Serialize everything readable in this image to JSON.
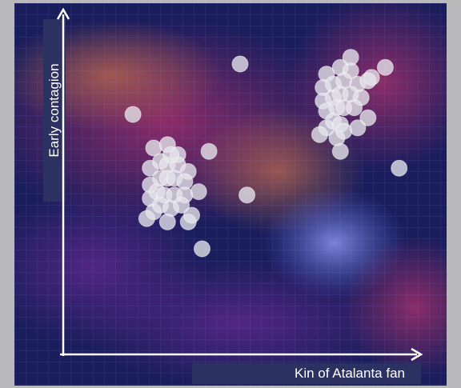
{
  "colors": {
    "page_background": "#b9b9bb",
    "axis": "#ffffff",
    "label_box": "#2b3160",
    "point_fill": "#e6e6ec",
    "point_stroke": "#ffffff"
  },
  "chart_data": {
    "type": "scatter",
    "title": "",
    "xlabel": "Kin of Atalanta fan",
    "ylabel": "Early contagion",
    "background": "nebula starfield image",
    "grid": true,
    "legend": "none",
    "xlim": [
      0,
      100
    ],
    "ylim": [
      0,
      100
    ],
    "points": [
      {
        "x": 19,
        "y": 70
      },
      {
        "x": 50,
        "y": 85
      },
      {
        "x": 41,
        "y": 59
      },
      {
        "x": 52,
        "y": 46
      },
      {
        "x": 39,
        "y": 30
      },
      {
        "x": 96,
        "y": 54
      },
      {
        "x": 35,
        "y": 38
      },
      {
        "x": 75,
        "y": 82
      },
      {
        "x": 79,
        "y": 84
      },
      {
        "x": 82,
        "y": 83
      },
      {
        "x": 88,
        "y": 81
      },
      {
        "x": 74,
        "y": 78
      },
      {
        "x": 77,
        "y": 79
      },
      {
        "x": 80,
        "y": 80
      },
      {
        "x": 84,
        "y": 79
      },
      {
        "x": 74,
        "y": 74
      },
      {
        "x": 77,
        "y": 75
      },
      {
        "x": 79,
        "y": 76
      },
      {
        "x": 82,
        "y": 76
      },
      {
        "x": 85,
        "y": 75
      },
      {
        "x": 75,
        "y": 71
      },
      {
        "x": 78,
        "y": 72
      },
      {
        "x": 80,
        "y": 72
      },
      {
        "x": 83,
        "y": 72
      },
      {
        "x": 87,
        "y": 69
      },
      {
        "x": 75,
        "y": 66
      },
      {
        "x": 77,
        "y": 68
      },
      {
        "x": 79,
        "y": 67
      },
      {
        "x": 84,
        "y": 66
      },
      {
        "x": 73,
        "y": 64
      },
      {
        "x": 78,
        "y": 63
      },
      {
        "x": 80,
        "y": 65
      },
      {
        "x": 79,
        "y": 59
      },
      {
        "x": 87,
        "y": 80
      },
      {
        "x": 92,
        "y": 84
      },
      {
        "x": 82,
        "y": 87
      },
      {
        "x": 25,
        "y": 60
      },
      {
        "x": 29,
        "y": 61
      },
      {
        "x": 32,
        "y": 58
      },
      {
        "x": 24,
        "y": 54
      },
      {
        "x": 27,
        "y": 56
      },
      {
        "x": 29,
        "y": 55
      },
      {
        "x": 32,
        "y": 55
      },
      {
        "x": 35,
        "y": 53
      },
      {
        "x": 24,
        "y": 49
      },
      {
        "x": 27,
        "y": 51
      },
      {
        "x": 29,
        "y": 51
      },
      {
        "x": 31,
        "y": 51
      },
      {
        "x": 34,
        "y": 50
      },
      {
        "x": 24,
        "y": 45
      },
      {
        "x": 26,
        "y": 47
      },
      {
        "x": 28,
        "y": 46
      },
      {
        "x": 31,
        "y": 46
      },
      {
        "x": 34,
        "y": 46
      },
      {
        "x": 38,
        "y": 47
      },
      {
        "x": 25,
        "y": 41
      },
      {
        "x": 27,
        "y": 43
      },
      {
        "x": 30,
        "y": 42
      },
      {
        "x": 33,
        "y": 43
      },
      {
        "x": 23,
        "y": 39
      },
      {
        "x": 29,
        "y": 38
      },
      {
        "x": 36,
        "y": 40
      },
      {
        "x": 30,
        "y": 58
      }
    ]
  }
}
